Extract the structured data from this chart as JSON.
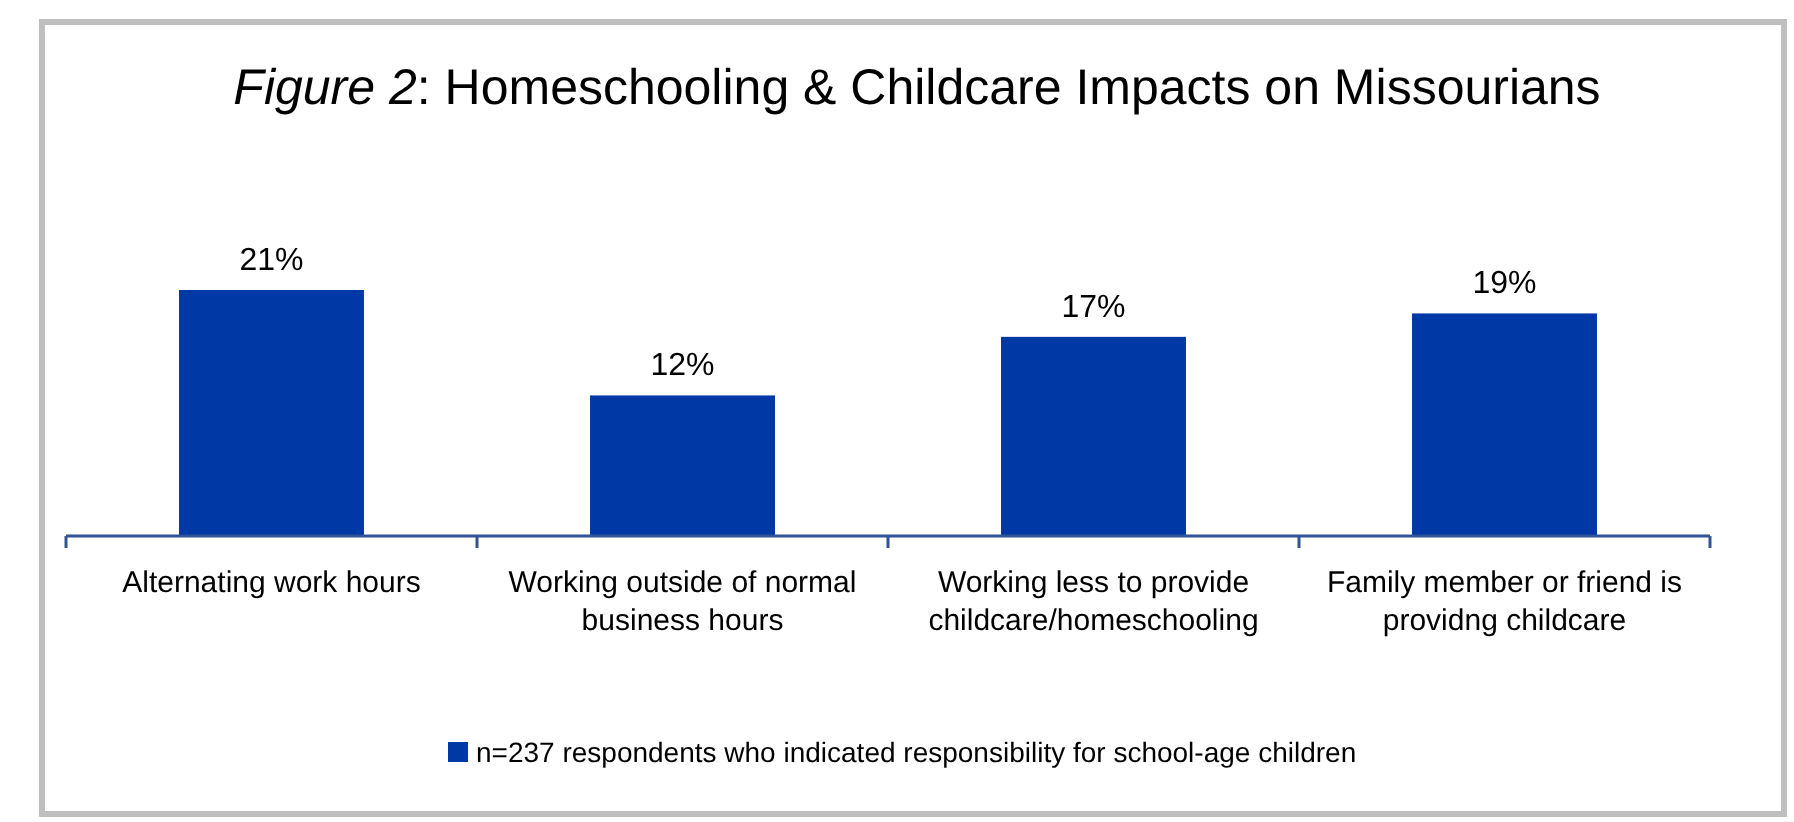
{
  "chart_data": {
    "type": "bar",
    "title": "Figure 2: Homeschooling & Childcare Impacts on Missourians",
    "categories": [
      "Alternating work hours",
      "Working outside of normal business hours",
      "Working less to provide childcare/homeschooling",
      "Family member or friend is providng childcare"
    ],
    "series": [
      {
        "name": "n=237 respondents who indicated responsibility for school-age children",
        "color": "#0039a6",
        "values": [
          21,
          12,
          17,
          19
        ],
        "value_labels": [
          "21%",
          "12%",
          "17%",
          "19%"
        ]
      }
    ],
    "legend": "bottom"
  }
}
